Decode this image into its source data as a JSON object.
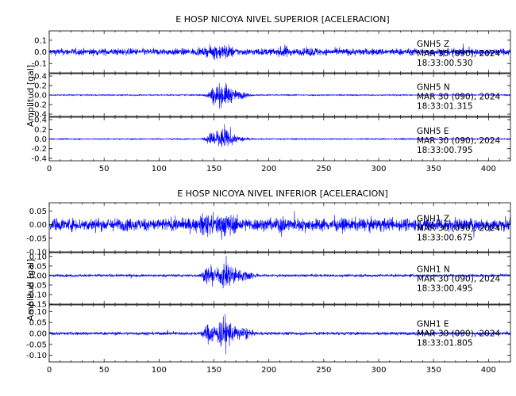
{
  "chart_data": [
    {
      "type": "line",
      "title": "E HOSP NICOYA NIVEL SUPERIOR [ACELERACION]",
      "ylabel": "Amplitud [gal]",
      "xlim": [
        0,
        420
      ],
      "xticks": [
        "0",
        "50",
        "100",
        "150",
        "200",
        "250",
        "300",
        "350",
        "400"
      ],
      "line_color": "#0000ff",
      "series": [
        {
          "name": "GNH5 Z",
          "annotation": [
            "GNH5   Z",
            "MAR 30 (090), 2024",
            "18:33:00.530"
          ],
          "ylim": [
            -0.18,
            0.18
          ],
          "yticks": [
            "0.1",
            "0.0",
            "-0.1"
          ],
          "noise": 0.05,
          "bursts": [
            {
              "t": 152,
              "w": 8,
              "a": 0.06
            },
            {
              "t": 162,
              "w": 6,
              "a": 0.05
            },
            {
              "t": 214,
              "w": 4,
              "a": 0.05
            },
            {
              "t": 240,
              "w": 6,
              "a": 0.02
            }
          ]
        },
        {
          "name": "GNH5 N",
          "annotation": [
            "GNH5   N",
            "MAR 30 (090), 2024",
            "18:33:01.315"
          ],
          "ylim": [
            -0.45,
            0.45
          ],
          "yticks": [
            "0.4",
            "0.2",
            "0.0",
            "-0.2",
            "-0.4"
          ],
          "noise": 0.02,
          "bursts": [
            {
              "t": 150,
              "w": 6,
              "a": 0.2
            },
            {
              "t": 160,
              "w": 9,
              "a": 0.38
            },
            {
              "t": 176,
              "w": 6,
              "a": 0.1
            }
          ]
        },
        {
          "name": "GNH5 E",
          "annotation": [
            "GNH5   E",
            "MAR 30 (090), 2024",
            "18:33:00.795"
          ],
          "ylim": [
            -0.45,
            0.45
          ],
          "yticks": [
            "0.4",
            "0.2",
            "0.0",
            "-0.2",
            "-0.4"
          ],
          "noise": 0.02,
          "bursts": [
            {
              "t": 148,
              "w": 5,
              "a": 0.16
            },
            {
              "t": 158,
              "w": 9,
              "a": 0.36
            },
            {
              "t": 175,
              "w": 6,
              "a": 0.08
            }
          ]
        }
      ]
    },
    {
      "type": "line",
      "title": "E HOSP NICOYA NIVEL INFERIOR [ACELERACION]",
      "ylabel": "Amplitud [gal]",
      "xlim": [
        0,
        420
      ],
      "xticks": [
        "0",
        "50",
        "100",
        "150",
        "200",
        "250",
        "300",
        "350",
        "400"
      ],
      "line_color": "#0000ff",
      "series": [
        {
          "name": "GNH1 Z",
          "annotation": [
            "GNH1   Z",
            "MAR 30 (090), 2024",
            "18:33:00.675"
          ],
          "ylim": [
            -0.1,
            0.08
          ],
          "yticks": [
            "0.05",
            "0.00",
            "-0.05",
            "-0.10"
          ],
          "noise": 0.04,
          "bursts": [
            {
              "t": 143,
              "w": 5,
              "a": 0.04
            },
            {
              "t": 160,
              "w": 10,
              "a": 0.04
            },
            {
              "t": 212,
              "w": 3,
              "a": 0.03
            }
          ]
        },
        {
          "name": "GNH1 N",
          "annotation": [
            "GNH1   N",
            "MAR 30 (090), 2024",
            "18:33:00.495"
          ],
          "ylim": [
            -0.15,
            0.12
          ],
          "yticks": [
            "0.10",
            "0.05",
            "0.00",
            "-0.05",
            "-0.10",
            "-0.15"
          ],
          "noise": 0.012,
          "bursts": [
            {
              "t": 145,
              "w": 5,
              "a": 0.07
            },
            {
              "t": 162,
              "w": 9,
              "a": 0.12
            },
            {
              "t": 180,
              "w": 6,
              "a": 0.04
            }
          ]
        },
        {
          "name": "GNH1 E",
          "annotation": [
            "GNH1   E",
            "MAR 30 (090), 2024",
            "18:33:01.805"
          ],
          "ylim": [
            -0.13,
            0.13
          ],
          "yticks": [
            "0.10",
            "0.05",
            "0.00",
            "-0.05",
            "-0.10"
          ],
          "noise": 0.012,
          "bursts": [
            {
              "t": 145,
              "w": 5,
              "a": 0.06
            },
            {
              "t": 160,
              "w": 9,
              "a": 0.12
            },
            {
              "t": 178,
              "w": 6,
              "a": 0.04
            }
          ]
        }
      ]
    }
  ]
}
